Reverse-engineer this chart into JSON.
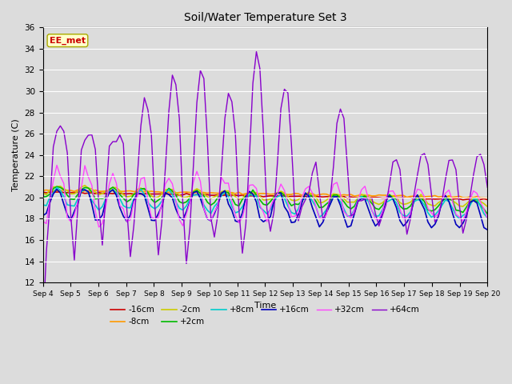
{
  "title": "Soil/Water Temperature Set 3",
  "xlabel": "Time",
  "ylabel": "Temperature (C)",
  "ylim": [
    12,
    36
  ],
  "yticks": [
    12,
    14,
    16,
    18,
    20,
    22,
    24,
    26,
    28,
    30,
    32,
    34,
    36
  ],
  "background_color": "#dcdcdc",
  "series": {
    "-16cm": {
      "color": "#cc0000",
      "lw": 1.2
    },
    "-8cm": {
      "color": "#ff9900",
      "lw": 1.2
    },
    "-2cm": {
      "color": "#cccc00",
      "lw": 1.2
    },
    "+2cm": {
      "color": "#00bb00",
      "lw": 1.2
    },
    "+8cm": {
      "color": "#00cccc",
      "lw": 1.2
    },
    "+16cm": {
      "color": "#0000bb",
      "lw": 1.2
    },
    "+32cm": {
      "color": "#ff44ff",
      "lw": 1.0
    },
    "+64cm": {
      "color": "#8800cc",
      "lw": 1.0
    }
  },
  "watermark": "EE_met",
  "watermark_color": "#cc0000",
  "watermark_bg": "#ffffcc",
  "watermark_edge": "#aaaa00"
}
